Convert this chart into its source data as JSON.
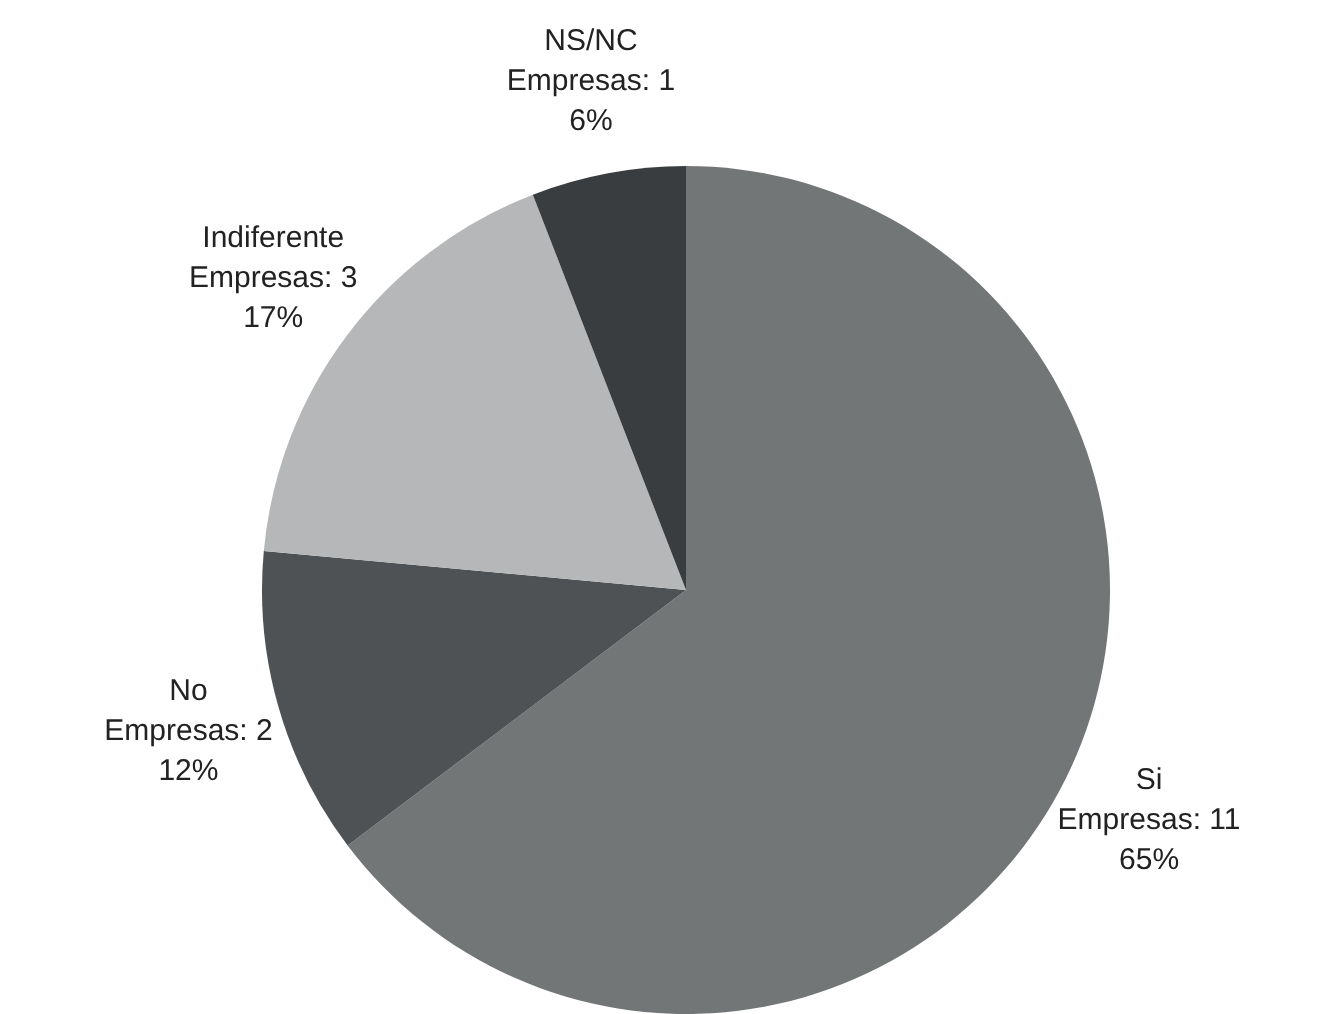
{
  "chart_data": {
    "type": "pie",
    "categories": [
      "Si",
      "No",
      "Indiferente",
      "NS/NC"
    ],
    "values": [
      11,
      2,
      3,
      1
    ],
    "colors": [
      "#737677",
      "#4f5254",
      "#b5b7b8",
      "#3a3d3f"
    ],
    "value_labels": [
      "Empresas: 11\n65%",
      "Empresas: 2\n12%",
      "Empresas: 3\n17%",
      "Empresas: 1\n6%"
    ],
    "legend": false
  }
}
